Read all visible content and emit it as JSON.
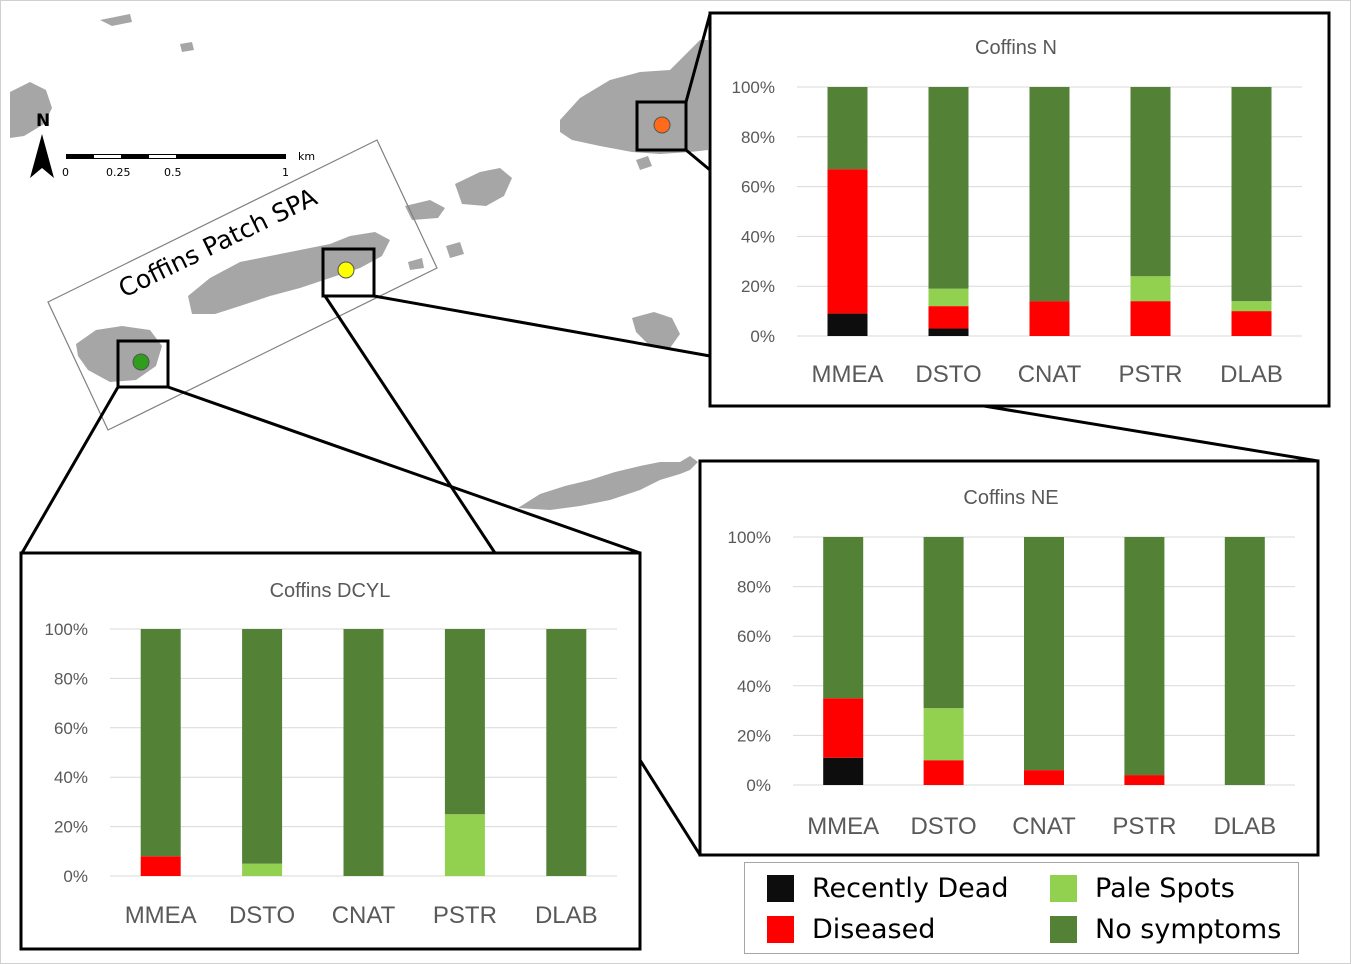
{
  "colors": {
    "recently_dead": "#0d0d0d",
    "diseased": "#ff0000",
    "pale_spots": "#92d050",
    "no_symptoms": "#538135",
    "land": "#a6a6a6",
    "site_n": "#ff6b1a",
    "site_ne": "#ffff00",
    "site_dcyl": "#2e9e1c"
  },
  "map": {
    "north_label": "N",
    "scale_unit": "km",
    "scale_ticks": [
      "0",
      "0.25",
      "0.5",
      "1"
    ],
    "spa_label": "Coffins Patch SPA"
  },
  "legend": [
    {
      "key": "recently_dead",
      "label": "Recently Dead"
    },
    {
      "key": "pale_spots",
      "label": "Pale Spots"
    },
    {
      "key": "diseased",
      "label": "Diseased"
    },
    {
      "key": "no_symptoms",
      "label": "No symptoms"
    }
  ],
  "chart_data": [
    {
      "type": "bar",
      "stacked": true,
      "title": "Coffins N",
      "categories": [
        "MMEA",
        "DSTO",
        "CNAT",
        "PSTR",
        "DLAB"
      ],
      "y_ticks": [
        "0%",
        "20%",
        "40%",
        "60%",
        "80%",
        "100%"
      ],
      "ylim": [
        0,
        100
      ],
      "series": [
        {
          "name": "Recently Dead",
          "key": "recently_dead",
          "values": [
            9,
            3,
            0,
            0,
            0
          ]
        },
        {
          "name": "Diseased",
          "key": "diseased",
          "values": [
            58,
            9,
            14,
            14,
            10
          ]
        },
        {
          "name": "Pale Spots",
          "key": "pale_spots",
          "values": [
            0,
            7,
            0,
            10,
            4
          ]
        },
        {
          "name": "No symptoms",
          "key": "no_symptoms",
          "values": [
            33,
            81,
            86,
            76,
            86
          ]
        }
      ]
    },
    {
      "type": "bar",
      "stacked": true,
      "title": "Coffins NE",
      "categories": [
        "MMEA",
        "DSTO",
        "CNAT",
        "PSTR",
        "DLAB"
      ],
      "y_ticks": [
        "0%",
        "20%",
        "40%",
        "60%",
        "80%",
        "100%"
      ],
      "ylim": [
        0,
        100
      ],
      "series": [
        {
          "name": "Recently Dead",
          "key": "recently_dead",
          "values": [
            11,
            0,
            0,
            0,
            0
          ]
        },
        {
          "name": "Diseased",
          "key": "diseased",
          "values": [
            24,
            10,
            6,
            4,
            0
          ]
        },
        {
          "name": "Pale Spots",
          "key": "pale_spots",
          "values": [
            0,
            21,
            0,
            0,
            0
          ]
        },
        {
          "name": "No symptoms",
          "key": "no_symptoms",
          "values": [
            65,
            69,
            94,
            96,
            100
          ]
        }
      ]
    },
    {
      "type": "bar",
      "stacked": true,
      "title": "Coffins DCYL",
      "categories": [
        "MMEA",
        "DSTO",
        "CNAT",
        "PSTR",
        "DLAB"
      ],
      "y_ticks": [
        "0%",
        "20%",
        "40%",
        "60%",
        "80%",
        "100%"
      ],
      "ylim": [
        0,
        100
      ],
      "series": [
        {
          "name": "Recently Dead",
          "key": "recently_dead",
          "values": [
            0,
            0,
            0,
            0,
            0
          ]
        },
        {
          "name": "Diseased",
          "key": "diseased",
          "values": [
            8,
            0,
            0,
            0,
            0
          ]
        },
        {
          "name": "Pale Spots",
          "key": "pale_spots",
          "values": [
            0,
            5,
            0,
            25,
            0
          ]
        },
        {
          "name": "No symptoms",
          "key": "no_symptoms",
          "values": [
            92,
            95,
            100,
            75,
            100
          ]
        }
      ]
    }
  ]
}
